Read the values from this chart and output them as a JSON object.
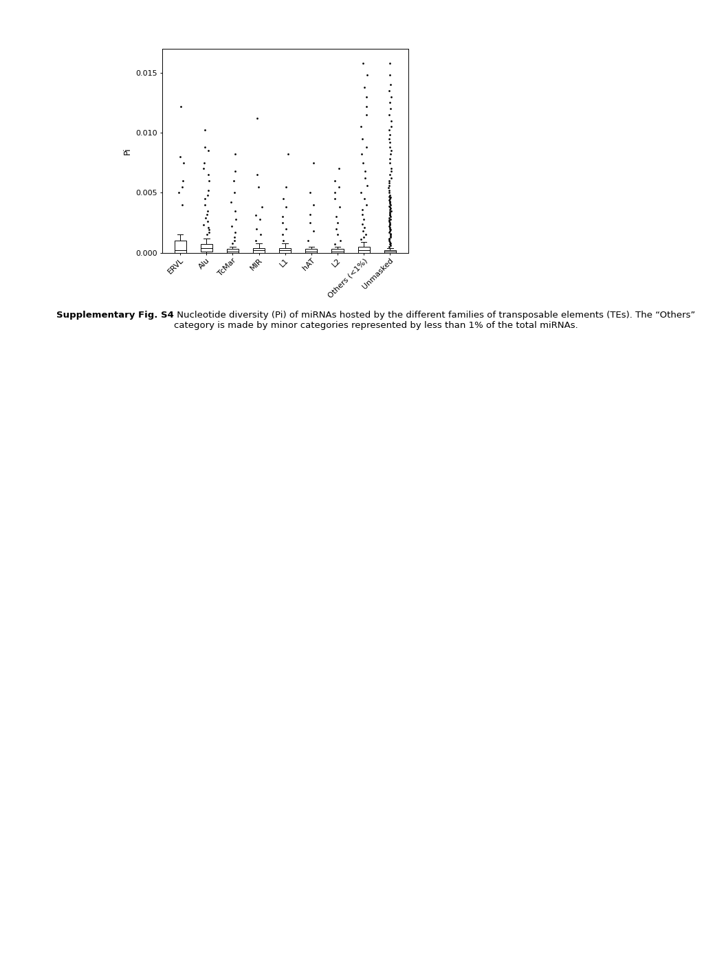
{
  "categories": [
    "ERVL",
    "Alu",
    "TcMar",
    "MIR",
    "L1",
    "hAT",
    "L2",
    "Others (<1%)",
    "Unmasked"
  ],
  "ylabel": "Pi",
  "ylim": [
    0,
    0.017
  ],
  "yticks": [
    0.0,
    0.005,
    0.01,
    0.015
  ],
  "ytick_labels": [
    "0.000",
    "0.005",
    "0.010",
    "0.015"
  ],
  "background_color": "#ffffff",
  "box_color": "#ffffff",
  "box_edge_color": "#000000",
  "whisker_color": "#000000",
  "flier_color": "#000000",
  "median_color": "#000000",
  "caption_bold": "Supplementary Fig. S4",
  "caption_text": " Nucleotide diversity (Pi) of miRNAs hosted by the different families of transposable elements (TEs). The “Others” category is made by minor categories represented by less than 1% of the total miRNAs.",
  "box_data": {
    "ERVL": {
      "q1": 0.0,
      "median": 0.0002,
      "q3": 0.001,
      "whisker_low": 0.0,
      "whisker_high": 0.0015,
      "outliers": [
        0.004,
        0.005,
        0.0055,
        0.006,
        0.0075,
        0.008,
        0.0122
      ]
    },
    "Alu": {
      "q1": 0.0001,
      "median": 0.0004,
      "q3": 0.0007,
      "whisker_low": 0.0,
      "whisker_high": 0.0012,
      "outliers": [
        0.0015,
        0.0017,
        0.0019,
        0.0021,
        0.0023,
        0.0026,
        0.0029,
        0.0032,
        0.0035,
        0.004,
        0.0045,
        0.0048,
        0.0052,
        0.006,
        0.0065,
        0.007,
        0.0075,
        0.0085,
        0.0088,
        0.0102
      ]
    },
    "TcMar": {
      "q1": 0.0,
      "median": 0.0001,
      "q3": 0.0003,
      "whisker_low": 0.0,
      "whisker_high": 0.0005,
      "outliers": [
        0.0008,
        0.001,
        0.0013,
        0.0017,
        0.0022,
        0.0028,
        0.0035,
        0.0042,
        0.005,
        0.006,
        0.0068,
        0.0082
      ]
    },
    "MIR": {
      "q1": 0.0,
      "median": 0.0002,
      "q3": 0.0004,
      "whisker_low": 0.0,
      "whisker_high": 0.0008,
      "outliers": [
        0.001,
        0.0015,
        0.002,
        0.0028,
        0.0031,
        0.0038,
        0.0055,
        0.0065,
        0.0112
      ]
    },
    "L1": {
      "q1": 0.0,
      "median": 0.0002,
      "q3": 0.0004,
      "whisker_low": 0.0,
      "whisker_high": 0.0008,
      "outliers": [
        0.001,
        0.0015,
        0.002,
        0.0025,
        0.003,
        0.0038,
        0.0045,
        0.0055,
        0.0082
      ]
    },
    "hAT": {
      "q1": 0.0,
      "median": 0.0001,
      "q3": 0.0003,
      "whisker_low": 0.0,
      "whisker_high": 0.0005,
      "outliers": [
        0.001,
        0.0018,
        0.0025,
        0.0032,
        0.004,
        0.005,
        0.0075
      ]
    },
    "L2": {
      "q1": 0.0,
      "median": 0.0001,
      "q3": 0.0003,
      "whisker_low": 0.0,
      "whisker_high": 0.0005,
      "outliers": [
        0.0007,
        0.001,
        0.0015,
        0.002,
        0.0025,
        0.003,
        0.0038,
        0.0045,
        0.005,
        0.0055,
        0.006,
        0.007
      ]
    },
    "Others (<1%)": {
      "q1": 0.0,
      "median": 0.0002,
      "q3": 0.0005,
      "whisker_low": 0.0,
      "whisker_high": 0.0009,
      "outliers": [
        0.0011,
        0.0013,
        0.0015,
        0.0018,
        0.0021,
        0.0024,
        0.0028,
        0.0032,
        0.0036,
        0.004,
        0.0045,
        0.005,
        0.0056,
        0.0062,
        0.0068,
        0.0075,
        0.0082,
        0.0088,
        0.0095,
        0.0105,
        0.0115,
        0.0122,
        0.013,
        0.0138,
        0.0148,
        0.0158
      ]
    },
    "Unmasked": {
      "q1": 0.0,
      "median": 0.0001,
      "q3": 0.0002,
      "whisker_low": 0.0,
      "whisker_high": 0.0004,
      "outliers": [
        0.0005,
        0.0006,
        0.0007,
        0.0008,
        0.0009,
        0.001,
        0.0011,
        0.0012,
        0.0013,
        0.0014,
        0.0015,
        0.0016,
        0.0017,
        0.0018,
        0.0019,
        0.002,
        0.0021,
        0.0022,
        0.0023,
        0.0024,
        0.0025,
        0.0026,
        0.0027,
        0.0028,
        0.0029,
        0.003,
        0.0031,
        0.0032,
        0.0033,
        0.0034,
        0.0035,
        0.0036,
        0.0037,
        0.0038,
        0.0039,
        0.004,
        0.0041,
        0.0042,
        0.0043,
        0.0044,
        0.0045,
        0.0046,
        0.0047,
        0.0048,
        0.005,
        0.0052,
        0.0054,
        0.0056,
        0.0058,
        0.006,
        0.0062,
        0.0065,
        0.0068,
        0.007,
        0.0075,
        0.0078,
        0.0082,
        0.0085,
        0.0088,
        0.0092,
        0.0095,
        0.0098,
        0.0102,
        0.0105,
        0.011,
        0.0115,
        0.012,
        0.0125,
        0.013,
        0.0135,
        0.014,
        0.0148,
        0.0158
      ]
    }
  }
}
